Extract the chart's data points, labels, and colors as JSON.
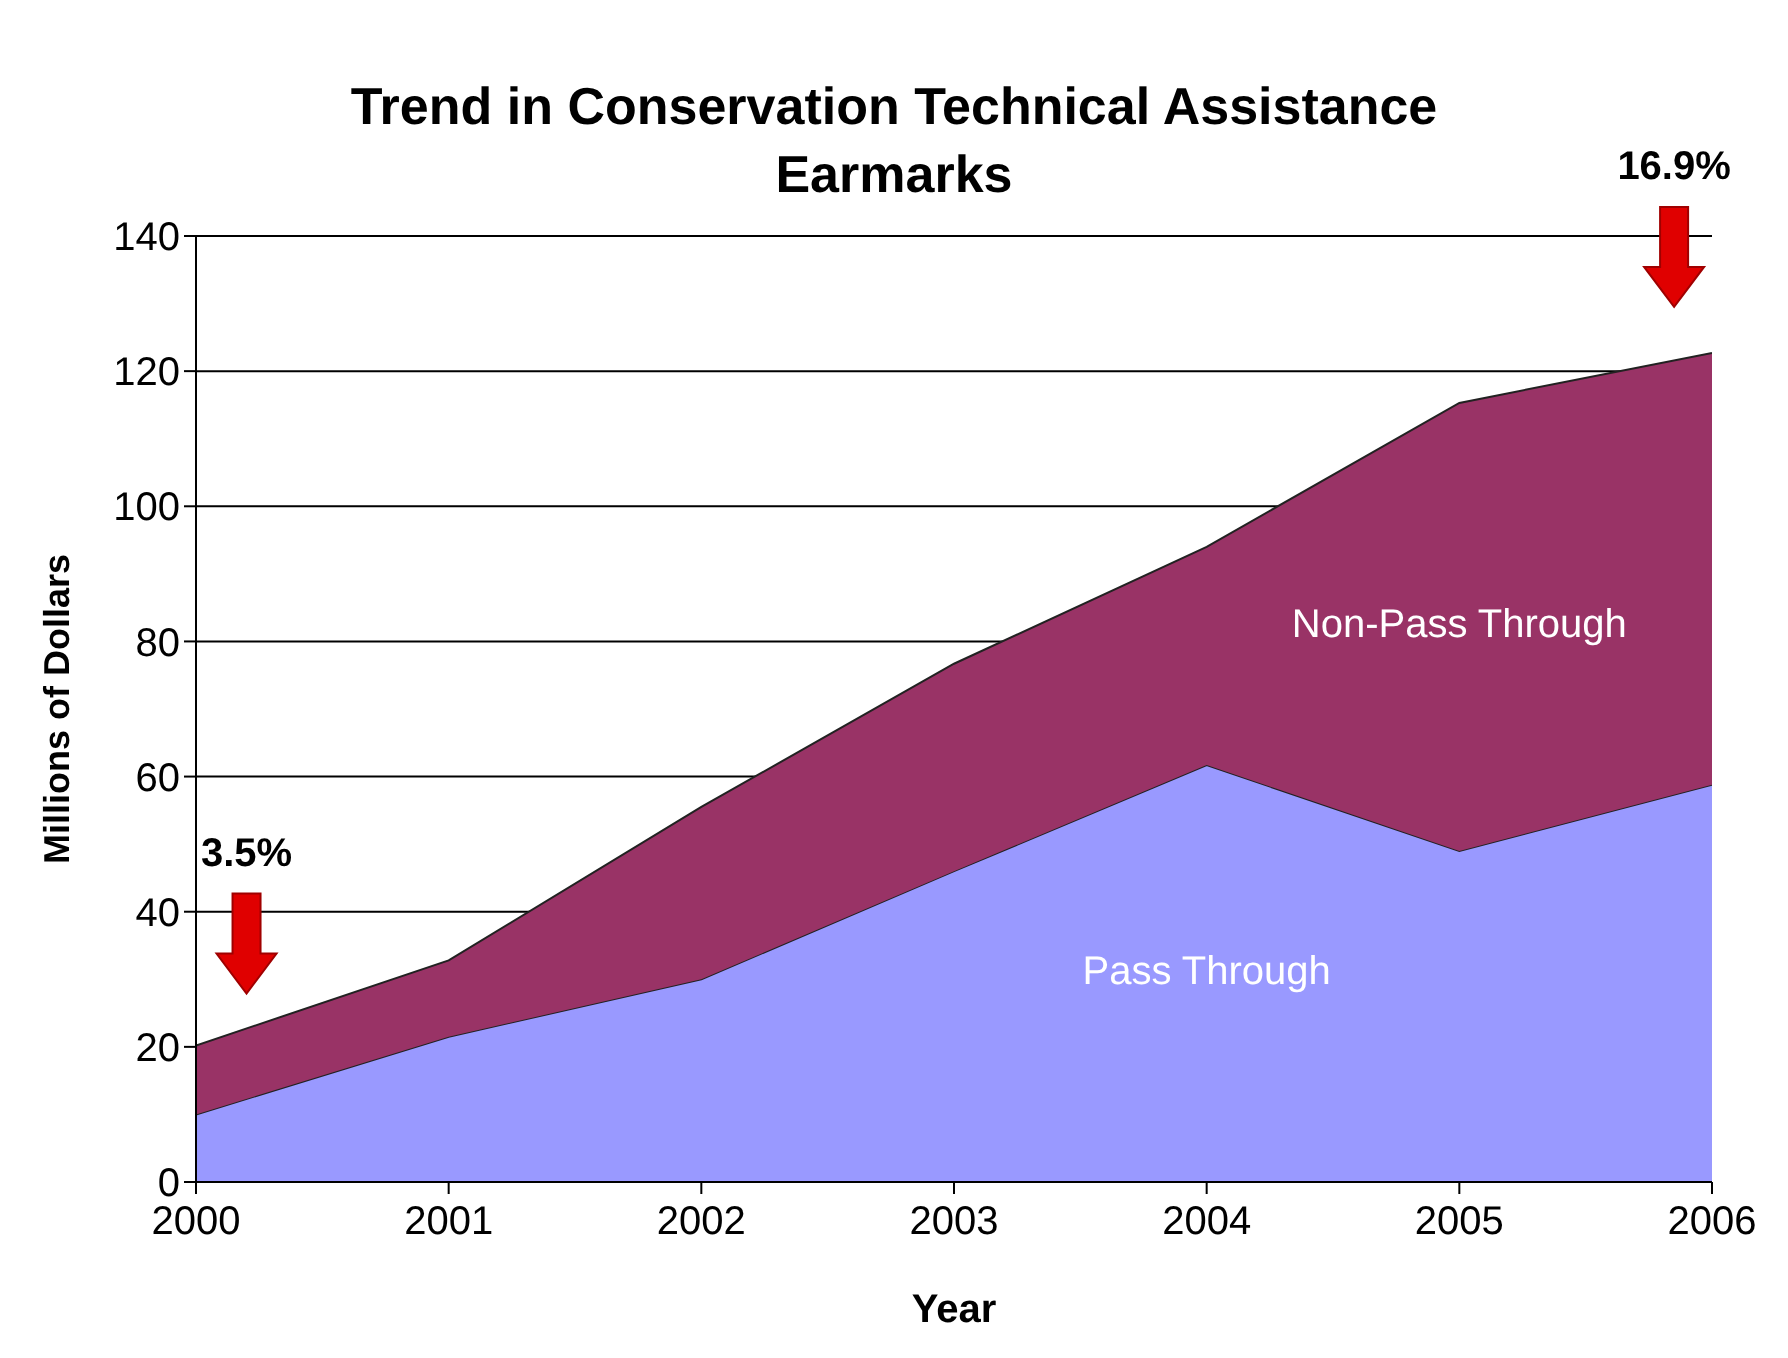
{
  "chart_data": {
    "type": "area",
    "stacked": true,
    "title": "Trend in Conservation Technical Assistance Earmarks",
    "xlabel": "Year",
    "ylabel": "Millions of Dollars",
    "x": [
      2000,
      2001,
      2002,
      2003,
      2004,
      2005,
      2006
    ],
    "series": [
      {
        "name": "Pass Through",
        "color": "#9999ff",
        "values": [
          10,
          21.5,
          30,
          46,
          61.7,
          49,
          58.8
        ]
      },
      {
        "name": "Non-Pass Through",
        "color": "#993366",
        "values": [
          10.2,
          11.3,
          25.5,
          30.7,
          32.3,
          66.3,
          63.9
        ]
      }
    ],
    "xlim": [
      2000,
      2006
    ],
    "xticks": [
      2000,
      2001,
      2002,
      2003,
      2004,
      2005,
      2006
    ],
    "ylim": [
      0,
      140
    ],
    "yticks": [
      0,
      20,
      40,
      60,
      80,
      100,
      120,
      140
    ],
    "grid": "y",
    "legend": false,
    "annotations": [
      "3.5%",
      "16.9%"
    ]
  }
}
